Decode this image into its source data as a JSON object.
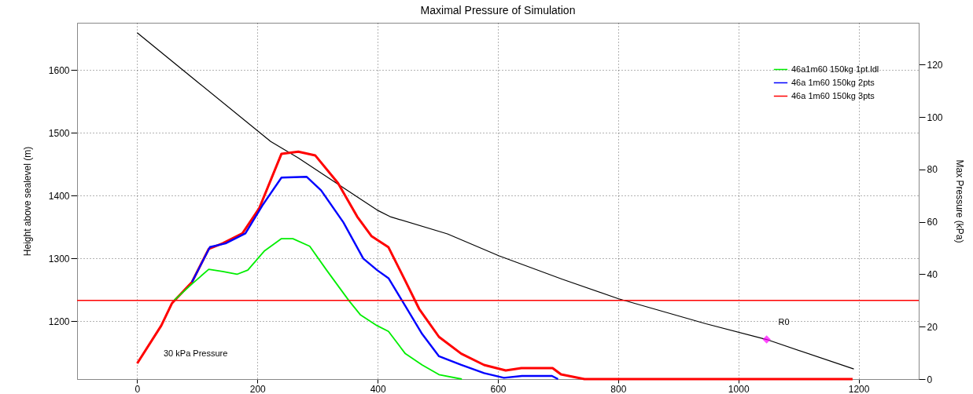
{
  "chart_data": {
    "type": "line",
    "title": "Maximal Pressure of Simulation",
    "ylabel": "Height above sealevel (m)",
    "y2label": "Max Pressure (kPa)",
    "xlim": [
      -100,
      1300
    ],
    "xticks": [
      0,
      200,
      400,
      600,
      800,
      1000,
      1200
    ],
    "ylim": [
      1108,
      1675
    ],
    "yticks": [
      1200,
      1300,
      1400,
      1500,
      1600
    ],
    "y2lim": [
      0,
      136
    ],
    "y2ticks": [
      0,
      20,
      40,
      60,
      80,
      100,
      120
    ],
    "grid": true,
    "legend": "top right",
    "marker": "none",
    "line_style": "solid",
    "series": [
      {
        "color": "#000000",
        "x": [
          0,
          100,
          222,
          268,
          399,
          422,
          516,
          602,
          707,
          800,
          946,
          1047,
          1192
        ],
        "values": [
          1659,
          1581,
          1486,
          1460,
          1377,
          1366,
          1339,
          1304,
          1267,
          1236,
          1196,
          1171,
          1124
        ]
      },
      {
        "name": "46a1m60 150kg 1pt.ldl",
        "color": "#00ee00",
        "axis": "y2",
        "x": [
          61,
          91,
          119,
          142,
          166,
          184,
          212,
          240,
          259,
          287,
          315,
          352,
          371,
          399,
          418,
          446,
          474,
          502,
          540
        ],
        "values": [
          30,
          36.3,
          41.9,
          41.1,
          40,
          41.6,
          49,
          53.6,
          53.6,
          50.7,
          41.6,
          30,
          24.6,
          20.4,
          18.2,
          9.7,
          5.4,
          1.7,
          0
        ]
      },
      {
        "name": "46a 1m60 150kg 2pts",
        "color": "#0000ff",
        "axis": "y2",
        "x": [
          91,
          121,
          147,
          180,
          208,
          240,
          282,
          306,
          343,
          376,
          399,
          418,
          446,
          474,
          502,
          539,
          577,
          610,
          640,
          690,
          700
        ],
        "values": [
          37,
          50.4,
          51.8,
          55.6,
          66.2,
          76.9,
          77.2,
          72,
          59.8,
          46,
          41.6,
          38.5,
          27.9,
          17.2,
          8.7,
          5.4,
          2.3,
          0.5,
          1.2,
          1.2,
          0
        ]
      },
      {
        "name": "46a 1m60 150kg 3pts",
        "color": "#ff0000",
        "axis": "y2",
        "x": [
          0,
          40,
          58,
          91,
          119,
          142,
          175,
          203,
          240,
          268,
          296,
          334,
          366,
          390,
          418,
          446,
          469,
          502,
          539,
          577,
          613,
          639,
          691,
          705,
          744,
          1190
        ],
        "values": [
          6,
          20.4,
          29,
          37,
          49.7,
          51.8,
          55.6,
          65.2,
          86,
          86.8,
          85.4,
          74.8,
          62,
          54.5,
          50.3,
          37.5,
          26.8,
          16.1,
          9.7,
          5.4,
          3.3,
          4.2,
          4.2,
          1.8,
          0,
          0
        ]
      },
      {
        "type": "scatter",
        "name": "R0",
        "color": "#ff00ff",
        "marker": "diamond",
        "x": [
          1047
        ],
        "values": [
          1171
        ]
      }
    ],
    "ref_lines": [
      {
        "axis": "y2",
        "value": 30,
        "color": "#ff0000"
      }
    ],
    "annotations": [
      "30 kPa Pressure"
    ]
  }
}
